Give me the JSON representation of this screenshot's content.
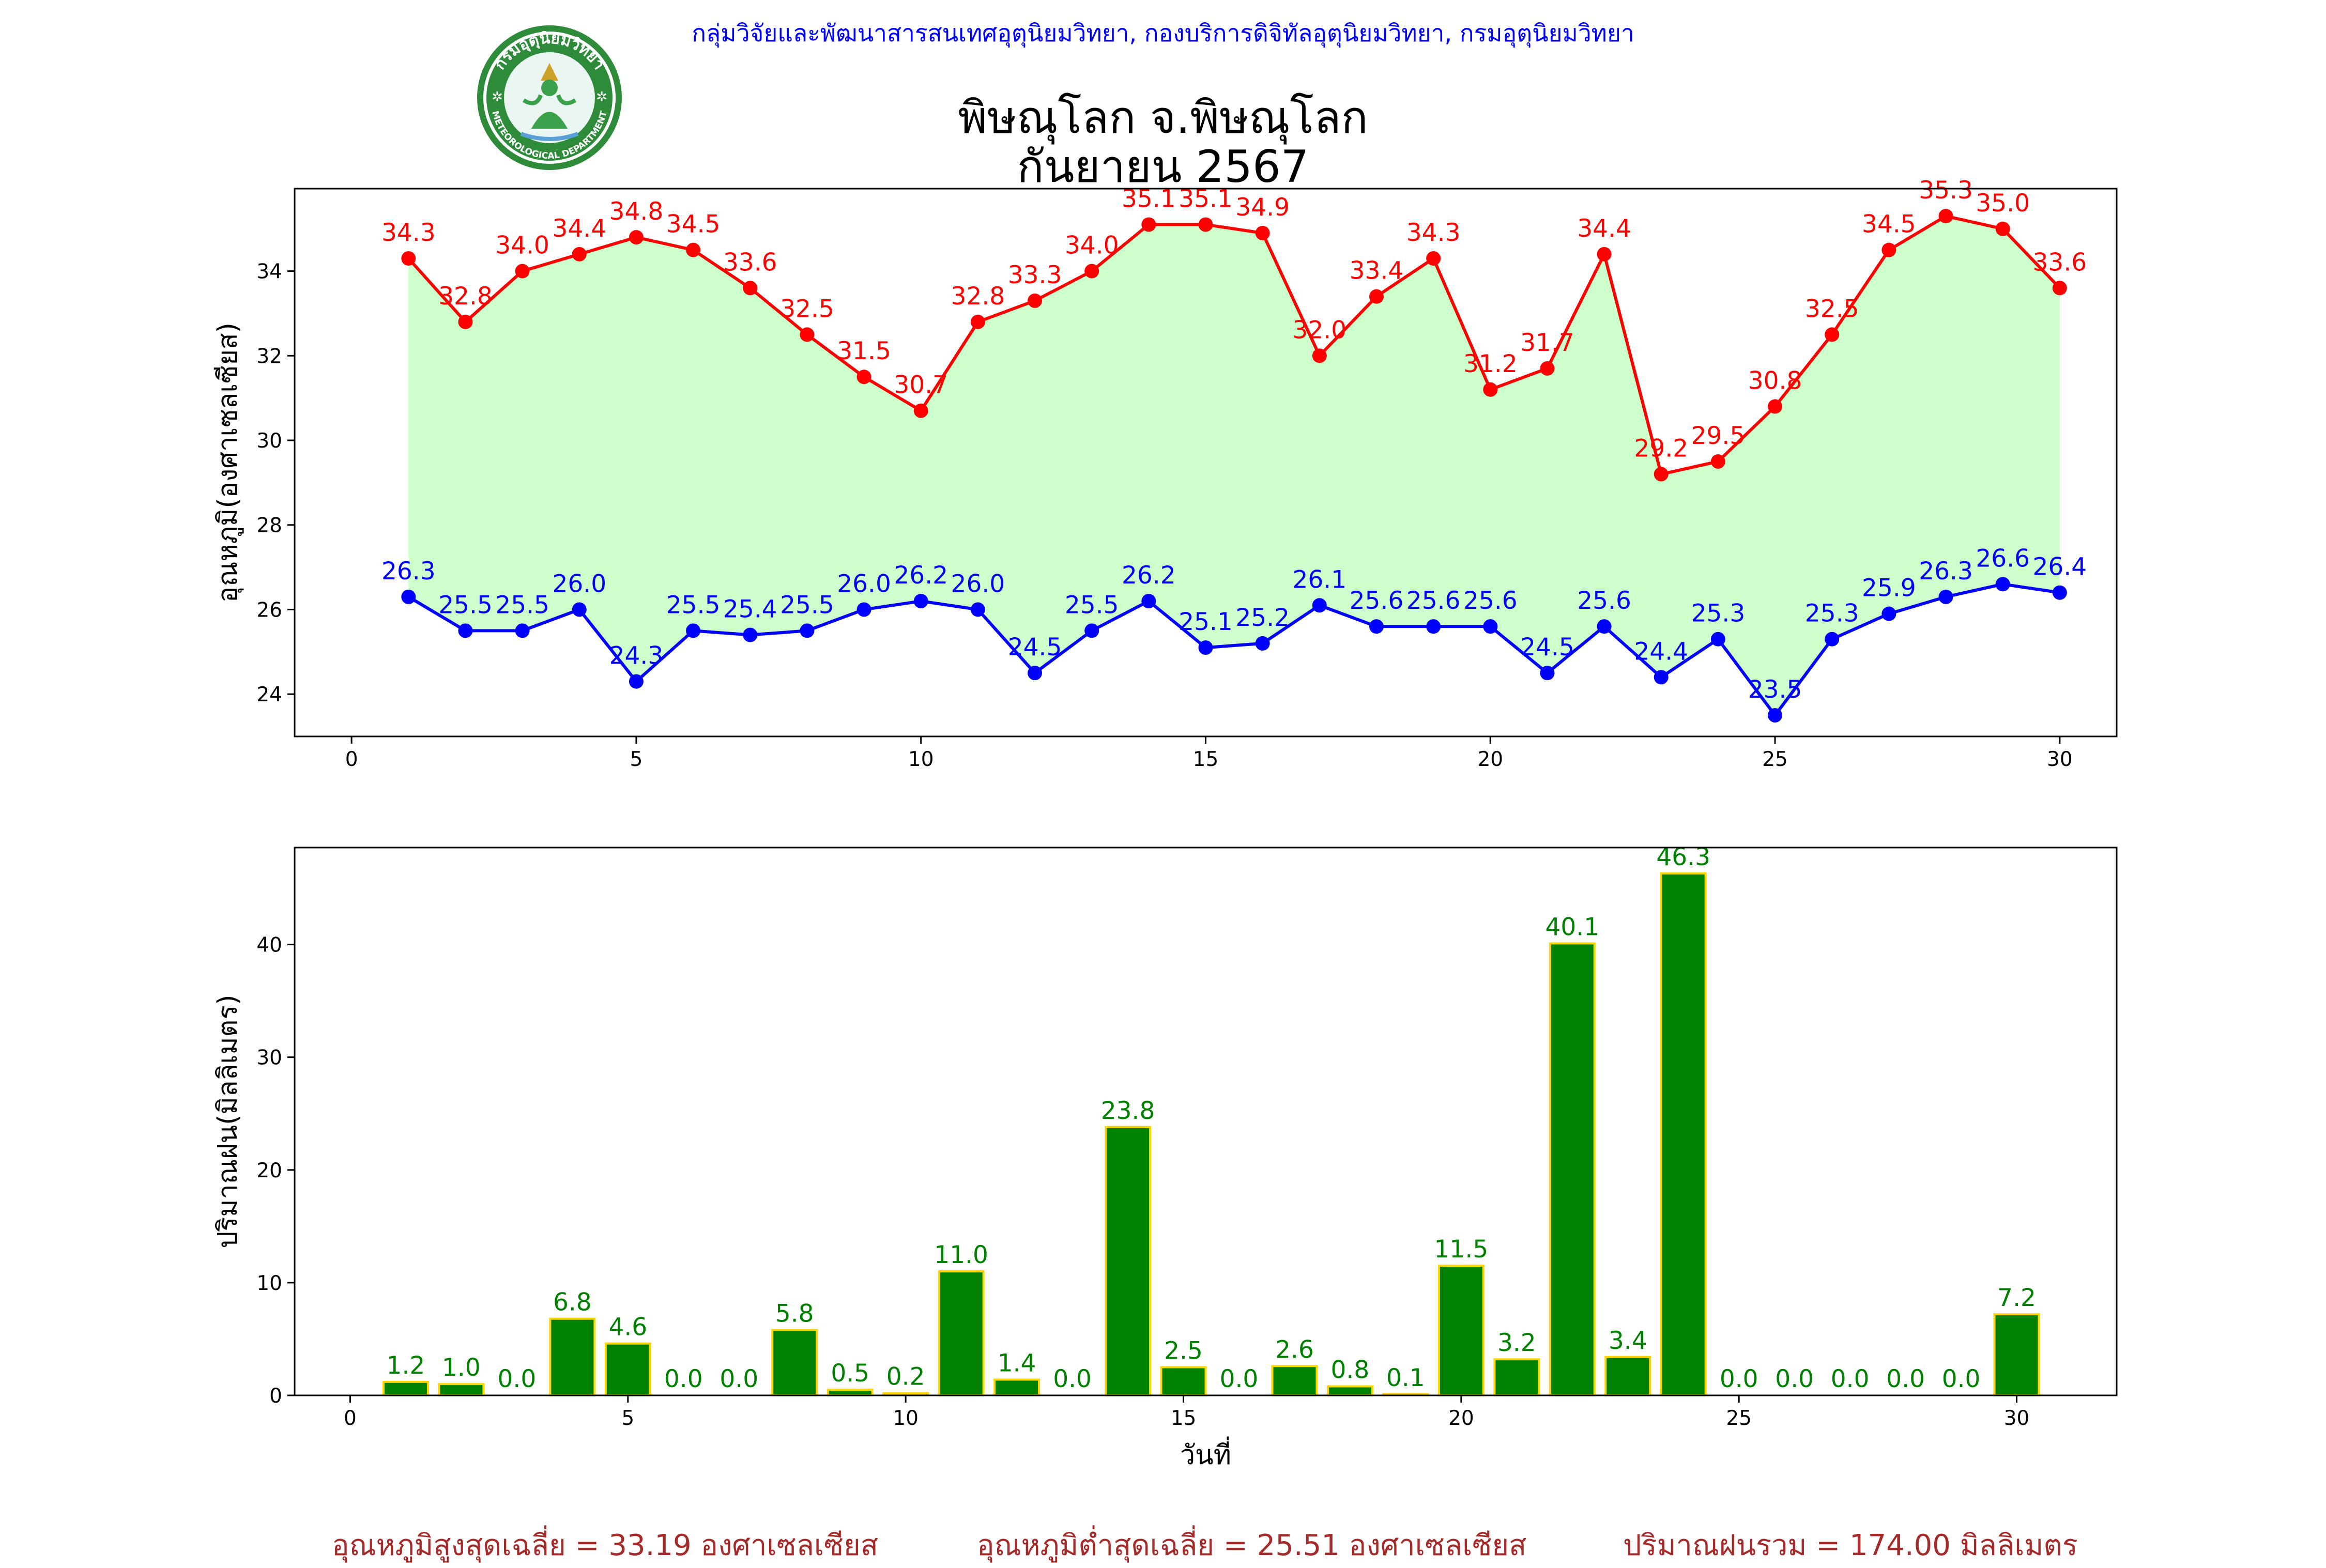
{
  "header": {
    "department": "กลุ่มวิจัยและพัฒนาสารสนเทศอุตุนิยมวิทยา, กองบริการดิจิทัลอุตุนิยมวิทยา, กรมอุตุนิยมวิทยา",
    "title": "พิษณุโลก จ.พิษณุโลก",
    "subtitle": "กันยายน 2567",
    "logo_text_top": "กรมอุตุนิยมวิทยา",
    "logo_text_bottom": "METEOROLOGICAL DEPARTMENT"
  },
  "colors": {
    "header_text": "#0000ff",
    "max_line": "#ff0000",
    "min_line": "#0000ff",
    "band_fill": "#ccffcc",
    "bar_fill": "#008000",
    "bar_edge": "#ffd700",
    "bar_label": "#008000",
    "footer_text": "#a52a2a"
  },
  "chart_data": [
    {
      "type": "line",
      "ylabel": "อุณหภูมิ(องศาเซลเซียส)",
      "xlabel": "",
      "xlim": [
        -1,
        31
      ],
      "ylim": [
        23.0,
        35.95
      ],
      "xticks": [
        0,
        5,
        10,
        15,
        20,
        25,
        30
      ],
      "yticks": [
        24,
        26,
        28,
        30,
        32,
        34
      ],
      "grid": false,
      "fill_between": true,
      "x": [
        1,
        2,
        3,
        4,
        5,
        6,
        7,
        8,
        9,
        10,
        11,
        12,
        13,
        14,
        15,
        16,
        17,
        18,
        19,
        20,
        21,
        22,
        23,
        24,
        25,
        26,
        27,
        28,
        29,
        30
      ],
      "series": [
        {
          "key": "max",
          "values": [
            34.3,
            32.8,
            34.0,
            34.4,
            34.8,
            34.5,
            33.6,
            32.5,
            31.5,
            30.7,
            32.8,
            33.3,
            34.0,
            35.1,
            35.1,
            34.9,
            32.0,
            33.4,
            34.3,
            31.2,
            31.7,
            34.4,
            29.2,
            29.5,
            30.8,
            32.5,
            34.5,
            35.3,
            35.0,
            33.6
          ]
        },
        {
          "key": "min",
          "values": [
            26.3,
            25.5,
            25.5,
            26.0,
            24.3,
            25.5,
            25.4,
            25.5,
            26.0,
            26.2,
            26.0,
            24.5,
            25.5,
            26.2,
            25.1,
            25.2,
            26.1,
            25.6,
            25.6,
            25.6,
            24.5,
            25.6,
            24.4,
            25.3,
            23.5,
            25.3,
            25.9,
            26.3,
            26.6,
            26.4
          ]
        }
      ]
    },
    {
      "type": "bar",
      "ylabel": "ปริมาณฝน(มิลลิเมตร)",
      "xlabel": "วันที่",
      "xlim": [
        -1,
        31.8
      ],
      "ylim": [
        0,
        48.6
      ],
      "xticks": [
        0,
        5,
        10,
        15,
        20,
        25,
        30
      ],
      "yticks": [
        0,
        10,
        20,
        30,
        40
      ],
      "grid": false,
      "categories": [
        1,
        2,
        3,
        4,
        5,
        6,
        7,
        8,
        9,
        10,
        11,
        12,
        13,
        14,
        15,
        16,
        17,
        18,
        19,
        20,
        21,
        22,
        23,
        24,
        25,
        26,
        27,
        28,
        29,
        30
      ],
      "values": [
        1.2,
        1.0,
        0.0,
        6.8,
        4.6,
        0.0,
        0.0,
        5.8,
        0.5,
        0.2,
        11.0,
        1.4,
        0.0,
        23.8,
        2.5,
        0.0,
        2.6,
        0.8,
        0.1,
        11.5,
        3.2,
        40.1,
        3.4,
        46.3,
        0.0,
        0.0,
        0.0,
        0.0,
        0.0,
        7.2
      ]
    }
  ],
  "footer": {
    "avg_max": "อุณหภูมิสูงสุดเฉลี่ย = 33.19 องศาเซลเซียส",
    "avg_min": "อุณหภูมิต่ำสุดเฉลี่ย = 25.51 องศาเซลเซียส",
    "total_rain": "ปริมาณฝนรวม = 174.00 มิลลิเมตร"
  }
}
